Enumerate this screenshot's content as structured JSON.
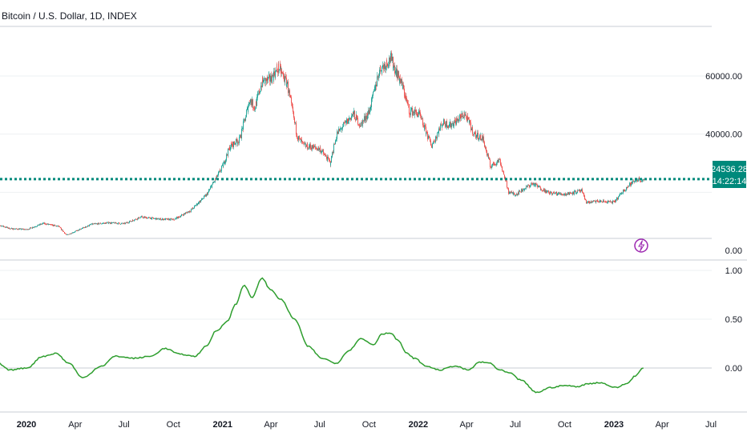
{
  "header": {
    "title": "Bitcoin / U.S. Dollar, 1D, INDEX"
  },
  "colors": {
    "up": "#26a69a",
    "down": "#ef5350",
    "oscillator": "#2e9e2e",
    "price_line": "#00897b",
    "badge_bg": "#00897b",
    "lightning": "#9c27b0"
  },
  "price_badge": {
    "price": "24536.28",
    "countdown": "14:22:14"
  },
  "lightning_icon": "lightning-icon",
  "chart_data": [
    {
      "type": "candlestick",
      "title": "Bitcoin / U.S. Dollar, 1D, INDEX",
      "y_ticks": [
        "60000.00",
        "40000.00",
        "0.00"
      ],
      "y_tick_values": [
        60000,
        40000,
        0
      ],
      "current_price": 24536.28,
      "x_ticks": [
        "2020",
        "Apr",
        "Jul",
        "Oct",
        "2021",
        "Apr",
        "Jul",
        "Oct",
        "2022",
        "Apr",
        "Jul",
        "Oct",
        "2023",
        "Apr",
        "Jul"
      ],
      "x_tick_bold": [
        true,
        false,
        false,
        false,
        true,
        false,
        false,
        false,
        true,
        false,
        false,
        false,
        true,
        false,
        false
      ],
      "x_tick_dates": [
        "2020-01-01",
        "2020-04-01",
        "2020-07-01",
        "2020-10-01",
        "2021-01-01",
        "2021-04-01",
        "2021-07-01",
        "2021-10-01",
        "2022-01-01",
        "2022-04-01",
        "2022-07-01",
        "2022-10-01",
        "2023-01-01",
        "2023-04-01",
        "2023-07-01"
      ],
      "close_series": {
        "dates": [
          "2019-11-01",
          "2019-12-01",
          "2020-01-01",
          "2020-02-01",
          "2020-03-01",
          "2020-03-15",
          "2020-04-01",
          "2020-05-01",
          "2020-06-01",
          "2020-07-01",
          "2020-08-01",
          "2020-09-01",
          "2020-10-01",
          "2020-11-01",
          "2020-12-01",
          "2021-01-01",
          "2021-01-15",
          "2021-02-01",
          "2021-02-20",
          "2021-03-01",
          "2021-03-15",
          "2021-04-01",
          "2021-04-15",
          "2021-05-01",
          "2021-05-20",
          "2021-06-01",
          "2021-07-01",
          "2021-07-20",
          "2021-08-01",
          "2021-09-01",
          "2021-09-15",
          "2021-10-01",
          "2021-10-20",
          "2021-11-10",
          "2021-12-01",
          "2021-12-15",
          "2022-01-01",
          "2022-01-25",
          "2022-02-15",
          "2022-03-01",
          "2022-03-28",
          "2022-04-15",
          "2022-05-01",
          "2022-05-15",
          "2022-06-01",
          "2022-06-18",
          "2022-07-01",
          "2022-08-01",
          "2022-09-01",
          "2022-10-01",
          "2022-11-01",
          "2022-11-10",
          "2022-12-01",
          "2023-01-01",
          "2023-01-20",
          "2023-02-01",
          "2023-02-15",
          "2023-02-25"
        ],
        "values": [
          9200,
          7500,
          7200,
          9300,
          8200,
          5300,
          6600,
          9000,
          9500,
          9200,
          11500,
          10800,
          10600,
          13700,
          19000,
          29000,
          36000,
          38000,
          52000,
          49000,
          58000,
          59000,
          63000,
          57000,
          39000,
          36000,
          35000,
          30000,
          40000,
          47000,
          43000,
          48000,
          62000,
          66000,
          57000,
          48000,
          47000,
          36000,
          44000,
          43000,
          47000,
          40000,
          38500,
          29000,
          31000,
          20000,
          19300,
          23000,
          19800,
          19300,
          20500,
          16500,
          16900,
          16600,
          21000,
          23000,
          24500,
          23800
        ]
      }
    },
    {
      "type": "line",
      "y_ticks": [
        "1.00",
        "0.50",
        "0.00"
      ],
      "y_tick_values": [
        1.0,
        0.5,
        0.0
      ],
      "x": [
        "2019-11-01",
        "2019-12-01",
        "2020-01-01",
        "2020-02-01",
        "2020-02-25",
        "2020-03-20",
        "2020-04-15",
        "2020-05-20",
        "2020-06-15",
        "2020-07-20",
        "2020-08-20",
        "2020-09-15",
        "2020-10-15",
        "2020-11-10",
        "2020-12-01",
        "2020-12-20",
        "2021-01-10",
        "2021-01-25",
        "2021-02-10",
        "2021-02-25",
        "2021-03-15",
        "2021-04-01",
        "2021-04-20",
        "2021-05-15",
        "2021-06-10",
        "2021-07-05",
        "2021-08-01",
        "2021-08-25",
        "2021-09-15",
        "2021-10-10",
        "2021-10-25",
        "2021-11-10",
        "2021-11-25",
        "2021-12-10",
        "2021-12-25",
        "2022-01-15",
        "2022-02-10",
        "2022-03-10",
        "2022-04-05",
        "2022-04-25",
        "2022-05-15",
        "2022-06-01",
        "2022-06-20",
        "2022-07-10",
        "2022-08-10",
        "2022-09-05",
        "2022-10-01",
        "2022-10-25",
        "2022-11-15",
        "2022-12-05",
        "2023-01-05",
        "2023-01-25",
        "2023-02-10",
        "2023-02-25"
      ],
      "values": [
        0.08,
        -0.02,
        0.0,
        0.12,
        0.15,
        0.05,
        -0.1,
        0.02,
        0.12,
        0.1,
        0.12,
        0.2,
        0.14,
        0.12,
        0.22,
        0.38,
        0.48,
        0.65,
        0.85,
        0.72,
        0.92,
        0.8,
        0.7,
        0.5,
        0.22,
        0.1,
        0.05,
        0.18,
        0.3,
        0.24,
        0.35,
        0.36,
        0.28,
        0.15,
        0.1,
        0.02,
        -0.02,
        0.02,
        -0.02,
        0.06,
        0.05,
        -0.02,
        -0.05,
        -0.12,
        -0.25,
        -0.2,
        -0.18,
        -0.19,
        -0.16,
        -0.15,
        -0.2,
        -0.16,
        -0.08,
        0.0
      ],
      "baseline": 0.0
    }
  ]
}
